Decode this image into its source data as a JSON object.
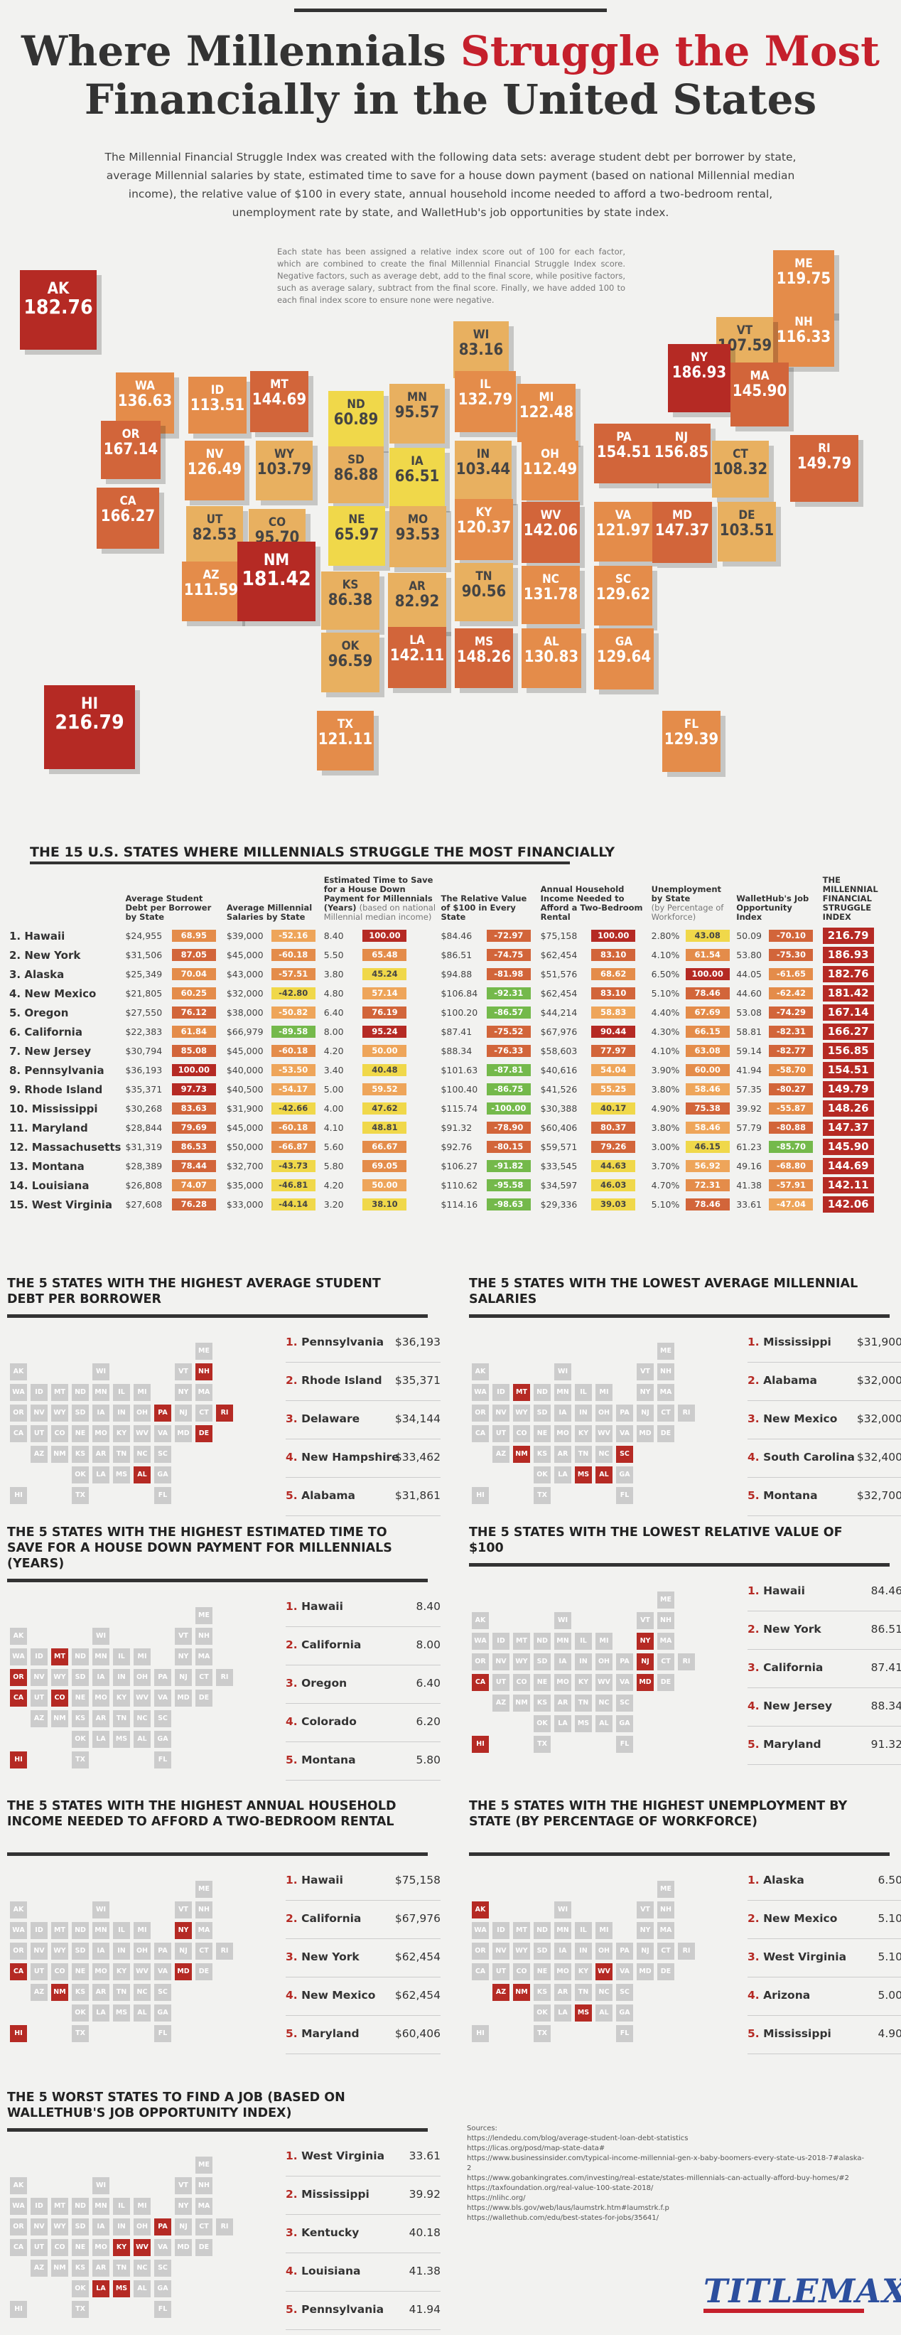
{
  "title": {
    "line1a": "Where Millennials ",
    "line1b": "Struggle the Most",
    "line2": "Financially in the United States"
  },
  "intro": "The Millennial Financial Struggle Index was created with the following data sets: average student debt per borrower by state, average Millennial salaries by state, estimated time to save for a house down payment (based on national Millennial median income), the relative value of $100 in every state, annual household income needed to afford a two-bedroom rental, unemployment rate by state, and WalletHub's job opportunities by state index.",
  "note": "Each state has been assigned a relative index score out of 100 for each factor, which are combined to create the final Millennial Financial Struggle Index score. Negative factors, such as average debt, add to the final score, while positive factors, such as average salary, subtract from the final score. Finally, we have added 100 to each final index score to ensure none were negative.",
  "colors": {
    "red": "#b52a24",
    "orange": "#d2653a",
    "yellow": "#f0d84a",
    "green": "#74b94b"
  },
  "map_tiles": [
    {
      "ab": "AK",
      "v": "182.76"
    },
    {
      "ab": "ME",
      "v": "119.75"
    },
    {
      "ab": "NH",
      "v": "116.33"
    },
    {
      "ab": "VT",
      "v": "107.59"
    },
    {
      "ab": "WI",
      "v": "83.16"
    },
    {
      "ab": "NY",
      "v": "186.93"
    },
    {
      "ab": "WA",
      "v": "136.63"
    },
    {
      "ab": "ID",
      "v": "113.51"
    },
    {
      "ab": "MT",
      "v": "144.69"
    },
    {
      "ab": "ND",
      "v": "60.89"
    },
    {
      "ab": "MN",
      "v": "95.57"
    },
    {
      "ab": "IL",
      "v": "132.79"
    },
    {
      "ab": "MI",
      "v": "122.48"
    },
    {
      "ab": "MA",
      "v": "145.90"
    },
    {
      "ab": "OR",
      "v": "167.14"
    },
    {
      "ab": "NV",
      "v": "126.49"
    },
    {
      "ab": "WY",
      "v": "103.79"
    },
    {
      "ab": "SD",
      "v": "86.88"
    },
    {
      "ab": "IA",
      "v": "66.51"
    },
    {
      "ab": "IN",
      "v": "103.44"
    },
    {
      "ab": "OH",
      "v": "112.49"
    },
    {
      "ab": "PA",
      "v": "154.51"
    },
    {
      "ab": "NJ",
      "v": "156.85"
    },
    {
      "ab": "CT",
      "v": "108.32"
    },
    {
      "ab": "RI",
      "v": "149.79"
    },
    {
      "ab": "CA",
      "v": "166.27"
    },
    {
      "ab": "UT",
      "v": "82.53"
    },
    {
      "ab": "CO",
      "v": "95.70"
    },
    {
      "ab": "NE",
      "v": "65.97"
    },
    {
      "ab": "MO",
      "v": "93.53"
    },
    {
      "ab": "KY",
      "v": "120.37"
    },
    {
      "ab": "WV",
      "v": "142.06"
    },
    {
      "ab": "VA",
      "v": "121.97"
    },
    {
      "ab": "MD",
      "v": "147.37"
    },
    {
      "ab": "DE",
      "v": "103.51"
    },
    {
      "ab": "AZ",
      "v": "111.59"
    },
    {
      "ab": "NM",
      "v": "181.42"
    },
    {
      "ab": "KS",
      "v": "86.38"
    },
    {
      "ab": "AR",
      "v": "82.92"
    },
    {
      "ab": "TN",
      "v": "90.56"
    },
    {
      "ab": "NC",
      "v": "131.78"
    },
    {
      "ab": "SC",
      "v": "129.62"
    },
    {
      "ab": "OK",
      "v": "96.59"
    },
    {
      "ab": "LA",
      "v": "142.11"
    },
    {
      "ab": "MS",
      "v": "148.26"
    },
    {
      "ab": "AL",
      "v": "130.83"
    },
    {
      "ab": "GA",
      "v": "129.64"
    },
    {
      "ab": "HI",
      "v": "216.79"
    },
    {
      "ab": "TX",
      "v": "121.11"
    },
    {
      "ab": "FL",
      "v": "129.39"
    }
  ],
  "table": {
    "heading": "THE 15 U.S. STATES WHERE MILLENNIALS STRUGGLE THE MOST FINANCIALLY",
    "headers": [
      "Average Student Debt per Borrower by State",
      "Average Millennial Salaries by State",
      "Estimated Time to Save for a House Down Payment for Millennials (Years)",
      "(based on national Millennial median income)",
      "The Relative Value of $100 in Every State",
      "Annual Household Income Needed to Afford a Two-Bedroom Rental",
      "Unemployment by State",
      "(by Percentage of Workforce)",
      "WalletHub's Job Opportunity Index",
      "THE MILLENNIAL FINANCIAL STRUGGLE INDEX"
    ],
    "rows": [
      [
        "1. Hawaii",
        "$24,955",
        "68.95",
        "$39,000",
        "-52.16",
        "8.40",
        "100.00",
        "$84.46",
        "-72.97",
        "$75,158",
        "100.00",
        "2.80%",
        "43.08",
        "50.09",
        "-70.10",
        "216.79"
      ],
      [
        "2. New York",
        "$31,506",
        "87.05",
        "$45,000",
        "-60.18",
        "5.50",
        "65.48",
        "$86.51",
        "-74.75",
        "$62,454",
        "83.10",
        "4.10%",
        "61.54",
        "53.80",
        "-75.30",
        "186.93"
      ],
      [
        "3. Alaska",
        "$25,349",
        "70.04",
        "$43,000",
        "-57.51",
        "3.80",
        "45.24",
        "$94.88",
        "-81.98",
        "$51,576",
        "68.62",
        "6.50%",
        "100.00",
        "44.05",
        "-61.65",
        "182.76"
      ],
      [
        "4. New Mexico",
        "$21,805",
        "60.25",
        "$32,000",
        "-42.80",
        "4.80",
        "57.14",
        "$106.84",
        "-92.31",
        "$62,454",
        "83.10",
        "5.10%",
        "78.46",
        "44.60",
        "-62.42",
        "181.42"
      ],
      [
        "5. Oregon",
        "$27,550",
        "76.12",
        "$38,000",
        "-50.82",
        "6.40",
        "76.19",
        "$100.20",
        "-86.57",
        "$44,214",
        "58.83",
        "4.40%",
        "67.69",
        "53.08",
        "-74.29",
        "167.14"
      ],
      [
        "6. California",
        "$22,383",
        "61.84",
        "$66,979",
        "-89.58",
        "8.00",
        "95.24",
        "$87.41",
        "-75.52",
        "$67,976",
        "90.44",
        "4.30%",
        "66.15",
        "58.81",
        "-82.31",
        "166.27"
      ],
      [
        "7. New Jersey",
        "$30,794",
        "85.08",
        "$45,000",
        "-60.18",
        "4.20",
        "50.00",
        "$88.34",
        "-76.33",
        "$58,603",
        "77.97",
        "4.10%",
        "63.08",
        "59.14",
        "-82.77",
        "156.85"
      ],
      [
        "8. Pennsylvania",
        "$36,193",
        "100.00",
        "$40,000",
        "-53.50",
        "3.40",
        "40.48",
        "$101.63",
        "-87.81",
        "$40,616",
        "54.04",
        "3.90%",
        "60.00",
        "41.94",
        "-58.70",
        "154.51"
      ],
      [
        "9. Rhode Island",
        "$35,371",
        "97.73",
        "$40,500",
        "-54.17",
        "5.00",
        "59.52",
        "$100.40",
        "-86.75",
        "$41,526",
        "55.25",
        "3.80%",
        "58.46",
        "57.35",
        "-80.27",
        "149.79"
      ],
      [
        "10. Mississippi",
        "$30,268",
        "83.63",
        "$31,900",
        "-42.66",
        "4.00",
        "47.62",
        "$115.74",
        "-100.00",
        "$30,388",
        "40.17",
        "4.90%",
        "75.38",
        "39.92",
        "-55.87",
        "148.26"
      ],
      [
        "11. Maryland",
        "$28,844",
        "79.69",
        "$45,000",
        "-60.18",
        "4.10",
        "48.81",
        "$91.32",
        "-78.90",
        "$60,406",
        "80.37",
        "3.80%",
        "58.46",
        "57.79",
        "-80.88",
        "147.37"
      ],
      [
        "12. Massachusetts",
        "$31,319",
        "86.53",
        "$50,000",
        "-66.87",
        "5.60",
        "66.67",
        "$92.76",
        "-80.15",
        "$59,571",
        "79.26",
        "3.00%",
        "46.15",
        "61.23",
        "-85.70",
        "145.90"
      ],
      [
        "13. Montana",
        "$28,389",
        "78.44",
        "$32,700",
        "-43.73",
        "5.80",
        "69.05",
        "$106.27",
        "-91.82",
        "$33,545",
        "44.63",
        "3.70%",
        "56.92",
        "49.16",
        "-68.80",
        "144.69"
      ],
      [
        "14. Louisiana",
        "$26,808",
        "74.07",
        "$35,000",
        "-46.81",
        "4.20",
        "50.00",
        "$110.62",
        "-95.58",
        "$34,597",
        "46.03",
        "4.70%",
        "72.31",
        "41.38",
        "-57.91",
        "142.11"
      ],
      [
        "15. West Virginia",
        "$27,608",
        "76.28",
        "$33,000",
        "-44.14",
        "3.20",
        "38.10",
        "$114.16",
        "-98.63",
        "$29,336",
        "39.03",
        "5.10%",
        "78.46",
        "33.61",
        "-47.04",
        "142.06"
      ]
    ]
  },
  "grid_labels": [
    [
      "ME"
    ],
    [
      "AK",
      "WI",
      "VT",
      "NH"
    ],
    [
      "WA",
      "ID",
      "MT",
      "ND",
      "MN",
      "IL",
      "MI",
      "NY",
      "MA"
    ],
    [
      "OR",
      "NV",
      "WY",
      "SD",
      "IA",
      "IN",
      "OH",
      "PA",
      "NJ",
      "CT",
      "RI"
    ],
    [
      "CA",
      "UT",
      "CO",
      "NE",
      "MO",
      "KY",
      "WV",
      "VA",
      "MD",
      "DE"
    ],
    [
      "AZ",
      "NM",
      "KS",
      "AR",
      "TN",
      "NC",
      "SC"
    ],
    [
      "OK",
      "LA",
      "MS",
      "AL",
      "GA"
    ],
    [
      "HI",
      "TX",
      "FL"
    ]
  ],
  "panels": [
    {
      "title": "THE 5 STATES WITH THE HIGHEST AVERAGE STUDENT DEBT PER BORROWER",
      "items": [
        [
          "1.",
          "Pennsylvania",
          "$36,193"
        ],
        [
          "2.",
          "Rhode Island",
          "$35,371"
        ],
        [
          "3.",
          "Delaware",
          "$34,144"
        ],
        [
          "4.",
          "New Hampshire",
          "$33,462"
        ],
        [
          "5.",
          "Alabama",
          "$31,861"
        ]
      ],
      "hl": [
        "PA",
        "RI",
        "DE",
        "NH",
        "AL"
      ]
    },
    {
      "title": "THE 5 STATES WITH THE LOWEST AVERAGE MILLENNIAL SALARIES",
      "items": [
        [
          "1.",
          "Mississippi",
          "$31,900"
        ],
        [
          "2.",
          "Alabama",
          "$32,000"
        ],
        [
          "3.",
          "New Mexico",
          "$32,000"
        ],
        [
          "4.",
          "South Carolina",
          "$32,400"
        ],
        [
          "5.",
          "Montana",
          "$32,700"
        ]
      ],
      "hl": [
        "MS",
        "AL",
        "NM",
        "SC",
        "MT"
      ]
    },
    {
      "title": "THE 5 STATES WITH THE HIGHEST ESTIMATED TIME TO SAVE FOR A HOUSE DOWN PAYMENT FOR MILLENNIALS (YEARS)",
      "items": [
        [
          "1.",
          "Hawaii",
          "8.40"
        ],
        [
          "2.",
          "California",
          "8.00"
        ],
        [
          "3.",
          "Oregon",
          "6.40"
        ],
        [
          "4.",
          "Colorado",
          "6.20"
        ],
        [
          "5.",
          "Montana",
          "5.80"
        ]
      ],
      "hl": [
        "HI",
        "CA",
        "OR",
        "CO",
        "MT"
      ]
    },
    {
      "title": "THE 5 STATES WITH THE LOWEST RELATIVE VALUE OF $100",
      "items": [
        [
          "1.",
          "Hawaii",
          "84.46"
        ],
        [
          "2.",
          "New York",
          "86.51"
        ],
        [
          "3.",
          "California",
          "87.41"
        ],
        [
          "4.",
          "New Jersey",
          "88.34"
        ],
        [
          "5.",
          "Maryland",
          "91.32"
        ]
      ],
      "hl": [
        "HI",
        "NY",
        "CA",
        "NJ",
        "MD"
      ]
    },
    {
      "title": "THE 5 STATES WITH THE HIGHEST ANNUAL HOUSEHOLD INCOME NEEDED TO AFFORD A TWO-BEDROOM RENTAL",
      "items": [
        [
          "1.",
          "Hawaii",
          "$75,158"
        ],
        [
          "2.",
          "California",
          "$67,976"
        ],
        [
          "3.",
          "New York",
          "$62,454"
        ],
        [
          "4.",
          "New Mexico",
          "$62,454"
        ],
        [
          "5.",
          "Maryland",
          "$60,406"
        ]
      ],
      "hl": [
        "HI",
        "CA",
        "NY",
        "NM",
        "MD"
      ]
    },
    {
      "title": "THE 5 STATES WITH THE HIGHEST UNEMPLOYMENT BY STATE (BY PERCENTAGE OF WORKFORCE)",
      "items": [
        [
          "1.",
          "Alaska",
          "6.50"
        ],
        [
          "2.",
          "New Mexico",
          "5.10"
        ],
        [
          "3.",
          "West Virginia",
          "5.10"
        ],
        [
          "4.",
          "Arizona",
          "5.00"
        ],
        [
          "5.",
          "Mississippi",
          "4.90"
        ]
      ],
      "hl": [
        "AK",
        "NM",
        "WV",
        "AZ",
        "MS"
      ]
    },
    {
      "title": "THE 5 WORST STATES TO FIND A JOB (BASED ON WALLETHUB'S JOB OPPORTUNITY INDEX)",
      "items": [
        [
          "1.",
          "West Virginia",
          "33.61"
        ],
        [
          "2.",
          "Mississippi",
          "39.92"
        ],
        [
          "3.",
          "Kentucky",
          "40.18"
        ],
        [
          "4.",
          "Louisiana",
          "41.38"
        ],
        [
          "5.",
          "Pennsylvania",
          "41.94"
        ]
      ],
      "hl": [
        "WV",
        "MS",
        "KY",
        "LA",
        "PA"
      ]
    }
  ],
  "sources": [
    "Sources:",
    "https://lendedu.com/blog/average-student-loan-debt-statistics",
    "https://licas.org/posd/map-state-data#",
    "https://www.businessinsider.com/typical-income-millennial-gen-x-baby-boomers-every-state-us-2018-7#alaska-2",
    "https://www.gobankingrates.com/investing/real-estate/states-millennials-can-actually-afford-buy-homes/#2",
    "https://taxfoundation.org/real-value-100-state-2018/",
    "https://nlihc.org/",
    "https://www.bls.gov/web/laus/laumstrk.htm#laumstrk.f.p",
    "https://wallethub.com/edu/best-states-for-jobs/35641/"
  ],
  "logo": "TITLEMAX",
  "chart_data": {
    "type": "table",
    "title": "The 15 U.S. States Where Millennials Struggle the Most Financially",
    "categories": [
      "Hawaii",
      "New York",
      "Alaska",
      "New Mexico",
      "Oregon",
      "California",
      "New Jersey",
      "Pennsylvania",
      "Rhode Island",
      "Mississippi",
      "Maryland",
      "Massachusetts",
      "Montana",
      "Louisiana",
      "West Virginia"
    ],
    "series": [
      {
        "name": "Millennial Financial Struggle Index",
        "values": [
          216.79,
          186.93,
          182.76,
          181.42,
          167.14,
          166.27,
          156.85,
          154.51,
          149.79,
          148.26,
          147.37,
          145.9,
          144.69,
          142.11,
          142.06
        ]
      }
    ]
  }
}
